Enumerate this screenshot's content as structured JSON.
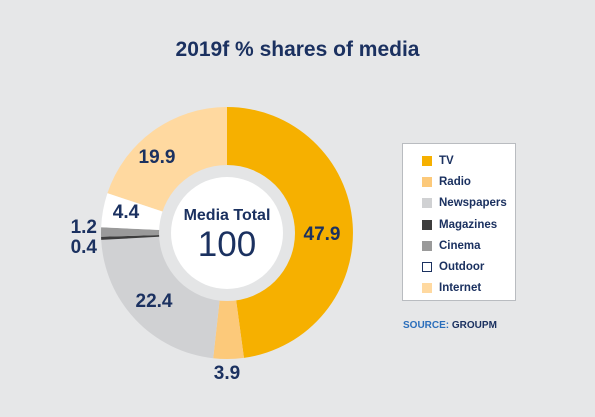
{
  "chart_data": {
    "type": "pie",
    "title": "2019f % shares of media",
    "center_label": "Media Total",
    "center_value": "100",
    "slices": [
      {
        "label": "TV",
        "value": 47.9,
        "value_text": "47.9",
        "color": "#f6b000"
      },
      {
        "label": "Radio",
        "value": 3.9,
        "value_text": "3.9",
        "color": "#fcc97a"
      },
      {
        "label": "Newspapers",
        "value": 22.4,
        "value_text": "22.4",
        "color": "#d0d1d3"
      },
      {
        "label": "Magazines",
        "value": 0.4,
        "value_text": "0.4",
        "color": "#3d3d3d"
      },
      {
        "label": "Cinema",
        "value": 1.2,
        "value_text": "1.2",
        "color": "#9a9a9a"
      },
      {
        "label": "Outdoor",
        "value": 4.4,
        "value_text": "4.4",
        "color": "#ffffff"
      },
      {
        "label": "Internet",
        "value": 19.9,
        "value_text": "19.9",
        "color": "#ffd9a0"
      }
    ],
    "legend_position": "right"
  },
  "source": {
    "label": "SOURCE:",
    "value": "GROUPM"
  },
  "colors": {
    "title": "#1b3160",
    "source_label": "#2a6ebb",
    "background": "#e6e7e8"
  }
}
